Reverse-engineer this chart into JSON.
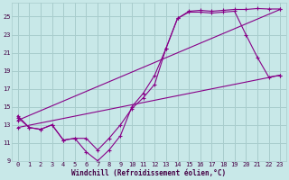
{
  "background_color": "#c8e8e8",
  "grid_color": "#a8cccc",
  "line_color": "#880088",
  "xlabel": "Windchill (Refroidissement éolien,°C)",
  "xlim": [
    0,
    23
  ],
  "ylim": [
    9,
    26
  ],
  "yticks": [
    9,
    11,
    13,
    15,
    17,
    19,
    21,
    23,
    25
  ],
  "xticks": [
    0,
    1,
    2,
    3,
    4,
    5,
    6,
    7,
    8,
    9,
    10,
    11,
    12,
    13,
    14,
    15,
    16,
    17,
    18,
    19,
    20,
    21,
    22,
    23
  ],
  "line1_x": [
    0,
    1,
    2,
    3,
    4,
    5,
    6,
    7,
    8,
    9,
    10,
    11,
    12,
    13,
    14,
    15,
    16,
    17,
    18,
    19,
    20,
    21,
    22,
    23
  ],
  "line1_y": [
    14.0,
    12.7,
    12.5,
    13.0,
    11.3,
    11.5,
    10.0,
    9.0,
    10.2,
    11.8,
    15.0,
    16.5,
    18.5,
    21.5,
    24.8,
    25.5,
    25.5,
    25.4,
    25.5,
    25.6,
    23.0,
    20.5,
    18.3,
    18.5
  ],
  "line2_x": [
    0,
    1,
    2,
    3,
    4,
    5,
    6,
    7,
    8,
    9,
    10,
    11,
    12,
    13,
    14,
    15,
    16,
    17,
    18,
    19,
    20,
    21,
    22,
    23
  ],
  "line2_y": [
    13.8,
    12.7,
    12.5,
    13.0,
    11.3,
    11.5,
    11.5,
    10.2,
    11.5,
    13.0,
    14.8,
    16.0,
    17.5,
    21.5,
    24.8,
    25.6,
    25.7,
    25.6,
    25.7,
    25.8,
    25.8,
    25.9,
    25.85,
    25.85
  ],
  "line3_x": [
    0,
    23
  ],
  "line3_y": [
    13.5,
    25.8
  ],
  "line4_x": [
    0,
    23
  ],
  "line4_y": [
    12.7,
    18.5
  ]
}
